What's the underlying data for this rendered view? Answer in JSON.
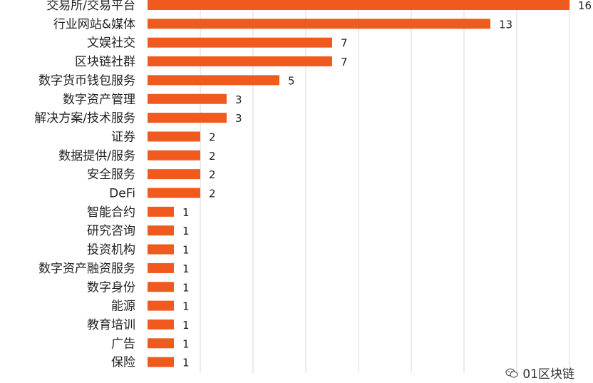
{
  "chart_data": {
    "type": "bar",
    "orientation": "horizontal",
    "categories": [
      "交易所/交易平台",
      "行业网站&媒体",
      "文娱社交",
      "区块链社群",
      "数字货币钱包服务",
      "数字资产管理",
      "解决方案/技术服务",
      "证券",
      "数据提供/服务",
      "安全服务",
      "DeFi",
      "智能合约",
      "研究咨询",
      "投资机构",
      "数字资产融资服务",
      "数字身份",
      "能源",
      "教育培训",
      "广告",
      "保险"
    ],
    "values": [
      16,
      13,
      7,
      7,
      5,
      3,
      3,
      2,
      2,
      2,
      2,
      1,
      1,
      1,
      1,
      1,
      1,
      1,
      1,
      1
    ],
    "data_labels": [
      "16",
      "13",
      "7",
      "7",
      "5",
      "3",
      "3",
      "2",
      "2",
      "2",
      "2",
      "1",
      "1",
      "1",
      "1",
      "1",
      "1",
      "1",
      "1",
      "1"
    ],
    "xlim": [
      0,
      16
    ],
    "grid": true,
    "bar_color": "#f05a1e",
    "grid_color": "#d9d9d9"
  },
  "watermark": {
    "text": "01区块链",
    "icon": "wechat-icon"
  }
}
